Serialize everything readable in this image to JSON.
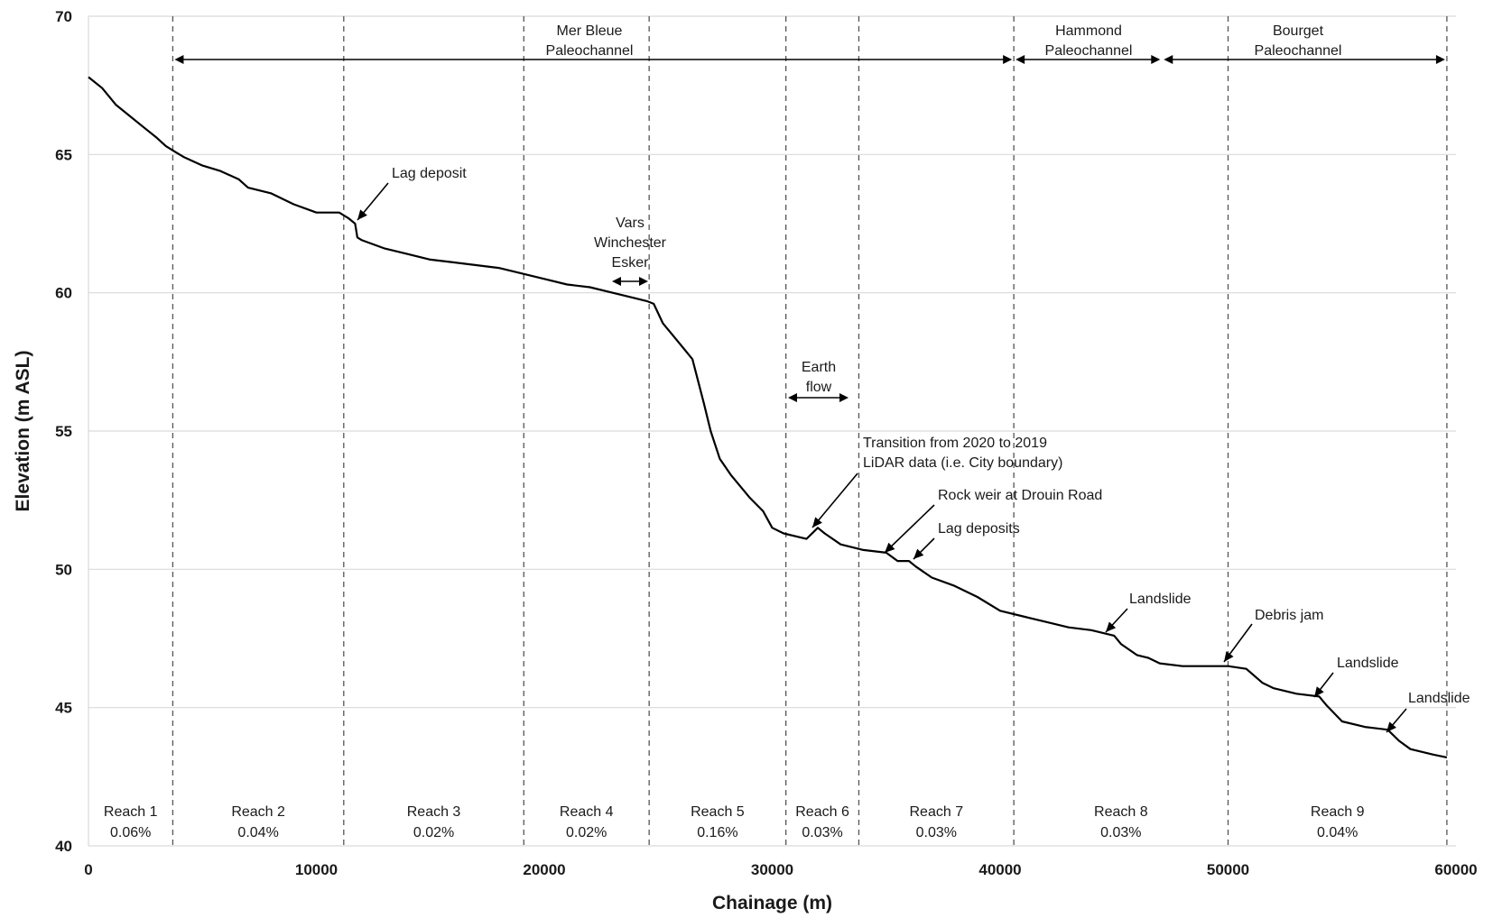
{
  "chart_data": {
    "type": "line",
    "xlabel": "Chainage (m)",
    "ylabel": "Elevation (m ASL)",
    "xlim": [
      0,
      60000
    ],
    "ylim": [
      40,
      70
    ],
    "x_ticks": [
      0,
      10000,
      20000,
      30000,
      40000,
      50000,
      60000
    ],
    "y_ticks": [
      40,
      45,
      50,
      55,
      60,
      65,
      70
    ],
    "grid": "horizontal",
    "series": [
      {
        "x": [
          0,
          600,
          1200,
          1800,
          2400,
          3000,
          3400,
          3800,
          4200,
          5000,
          5800,
          6600,
          7000,
          8000,
          9000,
          10000,
          11000,
          11400,
          11700,
          11800,
          12000,
          13000,
          14000,
          15000,
          16000,
          17000,
          18000,
          19000,
          20000,
          21000,
          22000,
          23000,
          24000,
          24500,
          24800,
          25200,
          25800,
          26500,
          27000,
          27300,
          27700,
          28200,
          29000,
          29600,
          30000,
          30500,
          31500,
          32000,
          32300,
          33000,
          34000,
          35000,
          35500,
          36000,
          36300,
          37000,
          38000,
          39000,
          40000,
          41000,
          42000,
          43000,
          44000,
          45000,
          45300,
          46000,
          46500,
          47000,
          48000,
          49000,
          50000,
          50800,
          51500,
          52000,
          53000,
          54000,
          54300,
          55000,
          56000,
          57000,
          57500,
          58000,
          59000,
          59600
        ],
        "y": [
          67.8,
          67.4,
          66.8,
          66.4,
          66.0,
          65.6,
          65.3,
          65.1,
          64.9,
          64.6,
          64.4,
          64.1,
          63.8,
          63.6,
          63.2,
          62.9,
          62.9,
          62.7,
          62.5,
          62.0,
          61.9,
          61.6,
          61.4,
          61.2,
          61.1,
          61.0,
          60.9,
          60.7,
          60.5,
          60.3,
          60.2,
          60.0,
          59.8,
          59.7,
          59.6,
          58.9,
          58.3,
          57.6,
          56.0,
          55.0,
          54.0,
          53.4,
          52.6,
          52.1,
          51.5,
          51.3,
          51.1,
          51.5,
          51.3,
          50.9,
          50.7,
          50.6,
          50.3,
          50.3,
          50.1,
          49.7,
          49.4,
          49.0,
          48.5,
          48.3,
          48.1,
          47.9,
          47.8,
          47.6,
          47.3,
          46.9,
          46.8,
          46.6,
          46.5,
          46.5,
          46.5,
          46.4,
          45.9,
          45.7,
          45.5,
          45.4,
          45.1,
          44.5,
          44.3,
          44.2,
          43.8,
          43.5,
          43.3,
          43.2
        ]
      }
    ],
    "reach_boundaries": [
      3700,
      11200,
      19100,
      24600,
      30600,
      33800,
      40600,
      50000,
      59600
    ],
    "reaches": [
      {
        "name": "Reach 1",
        "slope": "0.06%"
      },
      {
        "name": "Reach 2",
        "slope": "0.04%"
      },
      {
        "name": "Reach 3",
        "slope": "0.02%"
      },
      {
        "name": "Reach 4",
        "slope": "0.02%"
      },
      {
        "name": "Reach 5",
        "slope": "0.16%"
      },
      {
        "name": "Reach 6",
        "slope": "0.03%"
      },
      {
        "name": "Reach 7",
        "slope": "0.03%"
      },
      {
        "name": "Reach 8",
        "slope": "0.03%"
      },
      {
        "name": "Reach 9",
        "slope": "0.04%"
      }
    ],
    "paleochannels": [
      {
        "label": [
          "Mer Bleue",
          "Paleochannel"
        ],
        "x_start": 3700,
        "x_end": 40600
      },
      {
        "label": [
          "Hammond",
          "Paleochannel"
        ],
        "x_start": 40600,
        "x_end": 47100
      },
      {
        "label": [
          "Bourget",
          "Paleochannel"
        ],
        "x_start": 47100,
        "x_end": 59600
      }
    ],
    "annotations": [
      {
        "lines": [
          "Lag deposit"
        ]
      },
      {
        "lines": [
          "Vars",
          "Winchester",
          "Esker"
        ]
      },
      {
        "lines": [
          "Earth",
          "flow"
        ]
      },
      {
        "lines": [
          "Transition from 2020 to 2019",
          "LiDAR data (i.e. City boundary)"
        ]
      },
      {
        "lines": [
          "Rock weir at Drouin Road"
        ]
      },
      {
        "lines": [
          "Lag deposits"
        ]
      },
      {
        "lines": [
          "Landslide"
        ]
      },
      {
        "lines": [
          "Debris jam"
        ]
      },
      {
        "lines": [
          "Landslide"
        ]
      },
      {
        "lines": [
          "Landslide"
        ]
      }
    ]
  }
}
